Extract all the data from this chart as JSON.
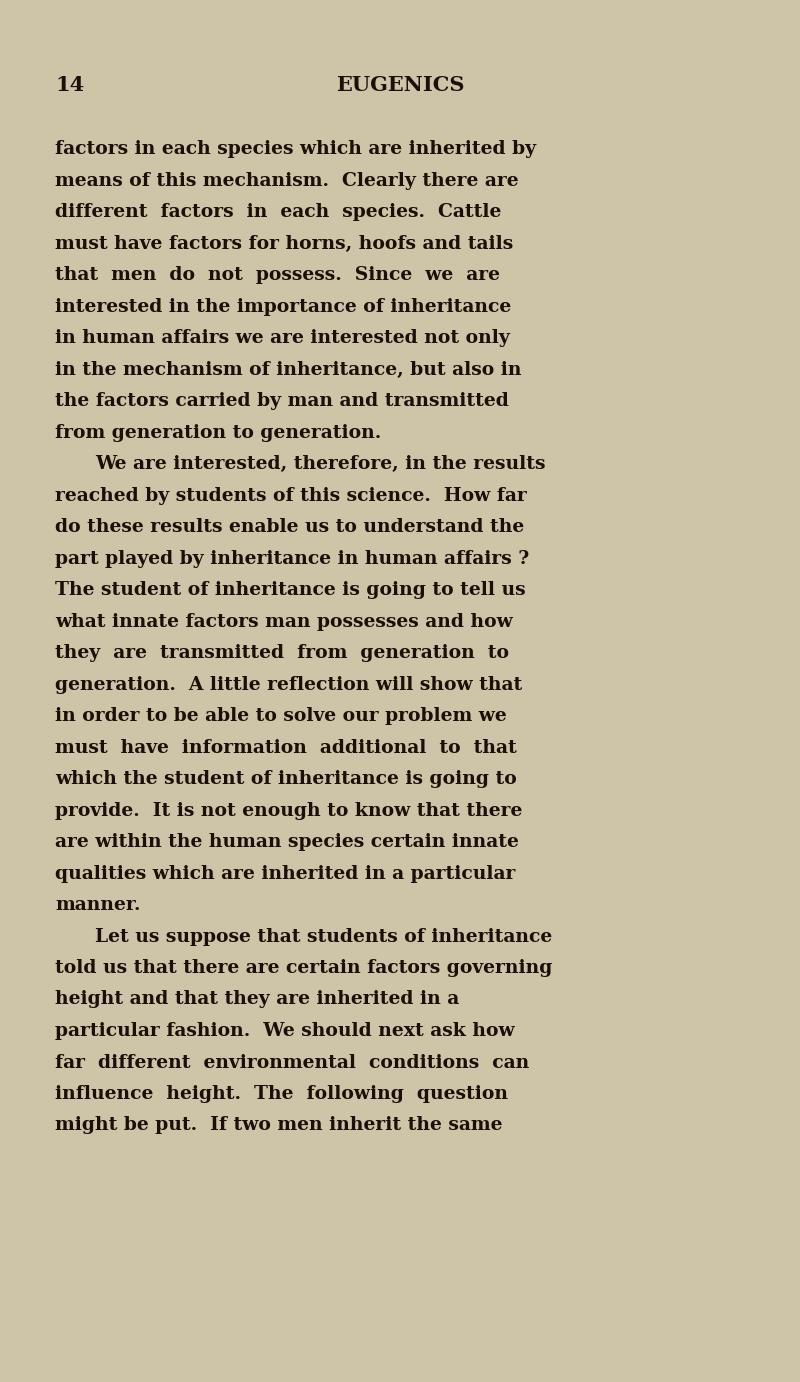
{
  "background_color": "#cec5a8",
  "text_color": "#1a1008",
  "page_number": "14",
  "header_title": "EUGENICS",
  "font_size_header": 15,
  "font_size_body": 13.5,
  "paragraphs": [
    {
      "indent": false,
      "lines": [
        "factors in each species which are inherited by",
        "means of this mechanism.  Clearly there are",
        "different  factors  in  each  species.  Cattle",
        "must have factors for horns, hoofs and tails",
        "that  men  do  not  possess.  Since  we  are",
        "interested in the importance of inheritance",
        "in human affairs we are interested not only",
        "in the mechanism of inheritance, but also in",
        "the factors carried by man and transmitted",
        "from generation to generation."
      ]
    },
    {
      "indent": true,
      "lines": [
        "We are interested, therefore, in the results",
        "reached by students of this science.  How far",
        "do these results enable us to understand the",
        "part played by inheritance in human affairs ?",
        "The student of inheritance is going to tell us",
        "what innate factors man possesses and how",
        "they  are  transmitted  from  generation  to",
        "generation.  A little reflection will show that",
        "in order to be able to solve our problem we",
        "must  have  information  additional  to  that",
        "which the student of inheritance is going to",
        "provide.  It is not enough to know that there",
        "are within the human species certain innate",
        "qualities which are inherited in a particular",
        "manner."
      ]
    },
    {
      "indent": true,
      "lines": [
        "Let us suppose that students of inheritance",
        "told us that there are certain factors governing",
        "height and that they are inherited in a",
        "particular fashion.  We should next ask how",
        "far  different  environmental  conditions  can",
        "influence  height.  The  following  question",
        "might be put.  If two men inherit the same"
      ]
    }
  ]
}
